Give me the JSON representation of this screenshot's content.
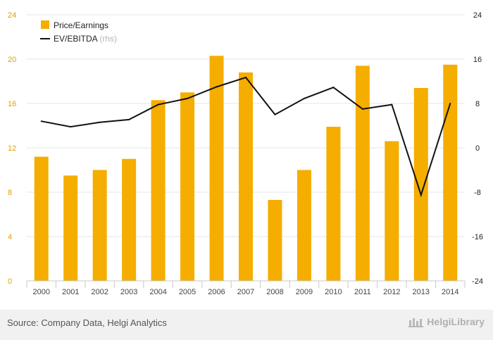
{
  "chart_data": {
    "type": "bar",
    "categories": [
      "2000",
      "2001",
      "2002",
      "2003",
      "2004",
      "2005",
      "2006",
      "2007",
      "2008",
      "2009",
      "2010",
      "2011",
      "2012",
      "2013",
      "2014"
    ],
    "series": [
      {
        "name": "Price/Earnings",
        "type": "bar",
        "axis": "left",
        "color": "#f5ad00",
        "values": [
          11.2,
          9.5,
          10.0,
          11.0,
          16.3,
          17.0,
          20.3,
          18.8,
          7.3,
          10.0,
          13.9,
          19.4,
          12.6,
          17.4,
          19.5
        ]
      },
      {
        "name": "EV/EBITDA",
        "name_note": "(rhs)",
        "type": "line",
        "axis": "right",
        "color": "#111111",
        "values": [
          4.8,
          3.8,
          4.6,
          5.1,
          7.8,
          8.9,
          11.0,
          12.7,
          6.0,
          8.9,
          10.9,
          7.0,
          7.8,
          -8.5,
          8.0
        ]
      }
    ],
    "y_left": {
      "min": 0,
      "max": 24,
      "ticks": [
        "0",
        "4",
        "8",
        "12",
        "16",
        "20",
        "24"
      ]
    },
    "y_right": {
      "min": -24,
      "max": 24,
      "ticks": [
        "-24",
        "-16",
        "-8",
        "0",
        "8",
        "16",
        "24"
      ]
    },
    "grid": true,
    "legend_position": "top-left"
  },
  "footer": {
    "source": "Source: Company Data, Helgi Analytics",
    "brand": "HelgiLibrary"
  }
}
